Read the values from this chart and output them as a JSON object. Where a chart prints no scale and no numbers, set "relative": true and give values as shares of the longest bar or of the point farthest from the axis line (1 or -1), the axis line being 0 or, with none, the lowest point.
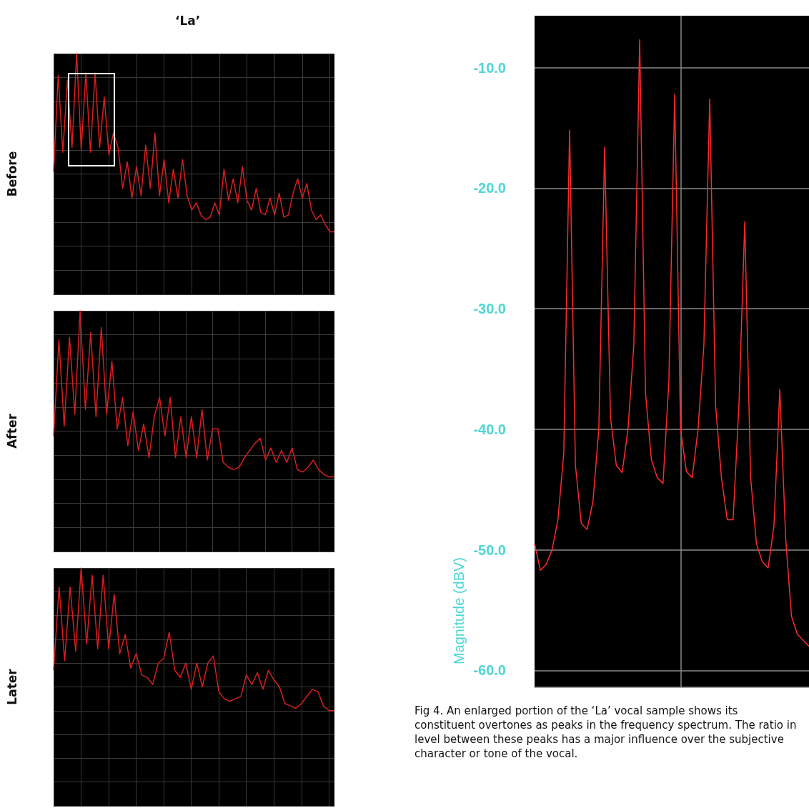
{
  "chart_data": [
    {
      "type": "line",
      "title": "‘La’",
      "ylabel": "Before",
      "relative": true,
      "grid": true,
      "tick_labels": false,
      "categories": [
        null,
        null,
        null,
        null,
        null,
        null,
        null,
        null,
        null,
        null,
        null,
        null,
        null,
        null,
        null,
        null,
        null,
        null,
        null,
        null,
        null,
        null,
        null,
        null,
        null,
        null,
        null,
        null,
        null,
        null,
        null,
        null,
        null,
        null,
        null,
        null,
        null,
        null,
        null,
        null,
        null,
        null,
        null,
        null,
        null,
        null,
        null,
        null,
        null,
        null,
        null,
        null,
        null,
        null,
        null,
        null,
        null,
        null,
        null,
        null,
        null,
        null
      ],
      "series": [
        {
          "color": "#d81e1e",
          "values": [
            0.51,
            0.91,
            0.59,
            0.89,
            0.61,
            1,
            0.6,
            0.92,
            0.59,
            0.92,
            0.61,
            0.82,
            0.58,
            0.67,
            0.61,
            0.44,
            0.55,
            0.4,
            0.53,
            0.41,
            0.62,
            0.44,
            0.67,
            0.41,
            0.56,
            0.38,
            0.52,
            0.4,
            0.56,
            0.41,
            0.35,
            0.38,
            0.33,
            0.31,
            0.32,
            0.38,
            0.33,
            0.52,
            0.39,
            0.48,
            0.38,
            0.53,
            0.39,
            0.35,
            0.44,
            0.34,
            0.33,
            0.4,
            0.33,
            0.42,
            0.32,
            0.33,
            0.42,
            0.48,
            0.4,
            0.46,
            0.35,
            0.31,
            0.33,
            0.29,
            0.26,
            0.26
          ]
        }
      ]
    },
    {
      "type": "line",
      "ylabel": "After",
      "relative": true,
      "grid": true,
      "tick_labels": false,
      "categories": [
        null,
        null,
        null,
        null,
        null,
        null,
        null,
        null,
        null,
        null,
        null,
        null,
        null,
        null,
        null,
        null,
        null,
        null,
        null,
        null,
        null,
        null,
        null,
        null,
        null,
        null,
        null,
        null,
        null,
        null,
        null,
        null,
        null,
        null,
        null,
        null,
        null,
        null,
        null,
        null,
        null,
        null,
        null,
        null,
        null,
        null,
        null,
        null,
        null,
        null,
        null,
        null,
        null,
        null
      ],
      "series": [
        {
          "color": "#d81e1e",
          "values": [
            0.48,
            0.88,
            0.52,
            0.89,
            0.57,
            1,
            0.59,
            0.91,
            0.56,
            0.93,
            0.57,
            0.79,
            0.51,
            0.64,
            0.44,
            0.58,
            0.42,
            0.53,
            0.39,
            0.56,
            0.64,
            0.48,
            0.64,
            0.39,
            0.56,
            0.39,
            0.56,
            0.39,
            0.59,
            0.38,
            0.51,
            0.51,
            0.37,
            0.35,
            0.34,
            0.35,
            0.39,
            0.42,
            0.45,
            0.47,
            0.38,
            0.43,
            0.37,
            0.42,
            0.37,
            0.43,
            0.34,
            0.33,
            0.35,
            0.38,
            0.34,
            0.32,
            0.31,
            0.31
          ]
        }
      ]
    },
    {
      "type": "line",
      "ylabel": "Later",
      "relative": true,
      "grid": true,
      "tick_labels": false,
      "categories": [
        null,
        null,
        null,
        null,
        null,
        null,
        null,
        null,
        null,
        null,
        null,
        null,
        null,
        null,
        null,
        null,
        null,
        null,
        null,
        null,
        null,
        null,
        null,
        null,
        null,
        null,
        null,
        null,
        null,
        null,
        null,
        null,
        null,
        null,
        null,
        null,
        null,
        null,
        null,
        null,
        null,
        null,
        null,
        null,
        null,
        null,
        null,
        null,
        null,
        null,
        null,
        null
      ],
      "series": [
        {
          "color": "#d81e1e",
          "values": [
            0.57,
            0.92,
            0.61,
            0.92,
            0.65,
            1,
            0.68,
            0.97,
            0.66,
            0.97,
            0.66,
            0.89,
            0.64,
            0.72,
            0.58,
            0.64,
            0.55,
            0.54,
            0.51,
            0.6,
            0.62,
            0.73,
            0.57,
            0.54,
            0.6,
            0.49,
            0.6,
            0.5,
            0.6,
            0.63,
            0.48,
            0.45,
            0.44,
            0.45,
            0.46,
            0.55,
            0.51,
            0.56,
            0.49,
            0.57,
            0.53,
            0.5,
            0.43,
            0.42,
            0.41,
            0.43,
            0.46,
            0.49,
            0.48,
            0.42,
            0.4,
            0.4
          ]
        }
      ]
    },
    {
      "type": "line",
      "ylabel": "Magnitude (dBV)",
      "grid": true,
      "tick_labels": "y",
      "ylim": [
        -61.4,
        -5.7
      ],
      "yticks": [
        {
          "value": -10,
          "label": "-10.0"
        },
        {
          "value": -20,
          "label": "-20.0"
        },
        {
          "value": -30,
          "label": "-30.0"
        },
        {
          "value": -40,
          "label": "-40.0"
        },
        {
          "value": -50,
          "label": "-50.0"
        },
        {
          "value": -60,
          "label": "-60.0"
        }
      ],
      "categories": [
        null,
        null,
        null,
        null,
        null,
        null,
        null,
        null,
        null,
        null,
        null,
        null,
        null,
        null,
        null,
        null,
        null,
        null,
        null,
        null,
        null,
        null,
        null,
        null,
        null,
        null,
        null,
        null,
        null,
        null,
        null,
        null,
        null,
        null,
        null,
        null,
        null,
        null,
        null,
        null,
        null,
        null,
        null,
        null,
        null,
        null,
        null,
        null
      ],
      "series": [
        {
          "color": "#ff2a2a",
          "values": [
            -49.5,
            -51.7,
            -51.2,
            -50,
            -47.5,
            -42,
            -15.2,
            -43,
            -47.8,
            -48.3,
            -46,
            -40,
            -16.6,
            -39,
            -43,
            -43.6,
            -40,
            -33,
            -7.7,
            -37,
            -42.5,
            -44,
            -44.5,
            -36,
            -12.2,
            -40,
            -43.5,
            -44,
            -40,
            -33,
            -12.6,
            -38,
            -44,
            -47.5,
            -47.5,
            -38,
            -22.8,
            -44,
            -49.5,
            -51,
            -51.5,
            -48,
            -36.7,
            -49,
            -55.5,
            -57,
            -57.5,
            -58
          ]
        }
      ],
      "annotations": [
        "Fig 4. An enlarged portion of the ‘La’ vocal sample shows its constituent overtones as peaks in the frequency spectrum. The ratio in level between these peaks has a major influence over the subjective character or tone of the vocal."
      ]
    }
  ]
}
